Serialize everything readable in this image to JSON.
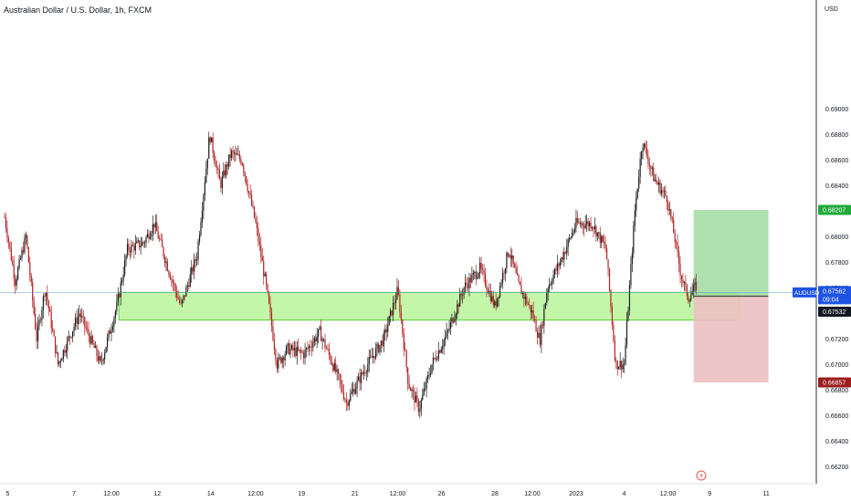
{
  "header": {
    "title": "Australian Dollar / U.S. Dollar, 1h, FXCM"
  },
  "price_axis": {
    "currency_label": "USD",
    "ticks": [
      "0.69000",
      "0.68800",
      "0.68600",
      "0.68400",
      "0.68200",
      "0.68000",
      "0.67800",
      "0.67600",
      "0.67400",
      "0.67200",
      "0.67000",
      "0.66800",
      "0.66600",
      "0.66400",
      "0.66200"
    ]
  },
  "time_axis": {
    "ticks": [
      "5",
      "7",
      "12:00",
      "12",
      "14",
      "12:00",
      "19",
      "21",
      "12:00",
      "26",
      "28",
      "12:00",
      "2023",
      "4",
      "12:00",
      "9",
      "11"
    ]
  },
  "badges": {
    "target": "0.68207",
    "symbol": "AUDUSD",
    "price": "0.67562",
    "countdown": "09:04",
    "entry": "0.67532",
    "stop": "0.66857"
  },
  "chart_data": {
    "type": "candlestick",
    "title": "Australian Dollar / U.S. Dollar, 1h, FXCM",
    "ylabel": "USD",
    "ylim": [
      0.6605,
      0.6922
    ],
    "x_tick_labels": [
      "5",
      "7",
      "12:00",
      "12",
      "14",
      "12:00",
      "19",
      "21",
      "12:00",
      "26",
      "28",
      "12:00",
      "2023",
      "4",
      "12:00",
      "9",
      "11"
    ],
    "x_tick_index": [
      0.3,
      6.5,
      10,
      14.3,
      19.3,
      23.5,
      27.8,
      32.8,
      36.8,
      40.9,
      45.9,
      49.4,
      53.5,
      58.0,
      62.1,
      66.0,
      71.3
    ],
    "x_count": 78,
    "close_path": [
      [
        0,
        0.6815
      ],
      [
        1,
        0.6765
      ],
      [
        2,
        0.68
      ],
      [
        3,
        0.672
      ],
      [
        3.8,
        0.676
      ],
      [
        5,
        0.67
      ],
      [
        7,
        0.674
      ],
      [
        9,
        0.67
      ],
      [
        10.5,
        0.6745
      ],
      [
        11.5,
        0.679
      ],
      [
        13,
        0.6795
      ],
      [
        14,
        0.681
      ],
      [
        15.5,
        0.677
      ],
      [
        16.5,
        0.6745
      ],
      [
        18,
        0.6785
      ],
      [
        19.2,
        0.688
      ],
      [
        20.2,
        0.684
      ],
      [
        21.2,
        0.6865
      ],
      [
        22.2,
        0.686
      ],
      [
        23.5,
        0.681
      ],
      [
        24.5,
        0.676
      ],
      [
        25.5,
        0.67
      ],
      [
        26.5,
        0.6712
      ],
      [
        28,
        0.6708
      ],
      [
        29.5,
        0.6725
      ],
      [
        31.2,
        0.669
      ],
      [
        32,
        0.667
      ],
      [
        34,
        0.67
      ],
      [
        35.5,
        0.672
      ],
      [
        36.8,
        0.6758
      ],
      [
        37.8,
        0.6685
      ],
      [
        38.8,
        0.6665
      ],
      [
        40,
        0.67
      ],
      [
        41.5,
        0.6725
      ],
      [
        43,
        0.676
      ],
      [
        44.5,
        0.6775
      ],
      [
        45.9,
        0.6745
      ],
      [
        47.2,
        0.679
      ],
      [
        48.1,
        0.6762
      ],
      [
        49.4,
        0.674
      ],
      [
        50.1,
        0.6718
      ],
      [
        50.8,
        0.676
      ],
      [
        52,
        0.678
      ],
      [
        53.5,
        0.681
      ],
      [
        55,
        0.681
      ],
      [
        56.3,
        0.679
      ],
      [
        57.2,
        0.67
      ],
      [
        58,
        0.67
      ],
      [
        59,
        0.682
      ],
      [
        59.7,
        0.6875
      ],
      [
        60.8,
        0.6845
      ],
      [
        62,
        0.683
      ],
      [
        62.7,
        0.68
      ],
      [
        63.3,
        0.677
      ],
      [
        64,
        0.6752
      ],
      [
        64.8,
        0.6762
      ]
    ],
    "horizontal_line": 0.67562,
    "demand_zone": {
      "y_top": 0.67562,
      "y_bottom": 0.67345,
      "x_start_index": 10.7,
      "x_end_index": 68.8
    },
    "long_position": {
      "entry": 0.67532,
      "target": 0.68207,
      "stop": 0.66857,
      "x_start_index": 64.5,
      "x_end_index": 71.5
    },
    "grid": false,
    "legend": "none"
  },
  "colors": {
    "candle_up": "#1e1e1e",
    "candle_down": "#b22222",
    "zone_fill": "#b8f59a",
    "zone_stroke": "#5bd13a",
    "profit_fill": "#a6dda6",
    "loss_fill": "#ebc1c1",
    "price_line": "#5b9bd5",
    "target_badge": "#1faa3a",
    "symbol_badge": "#1e53e5",
    "entry_badge": "#131722",
    "stop_badge": "#9b1c1c",
    "axis_text": "#131722"
  }
}
